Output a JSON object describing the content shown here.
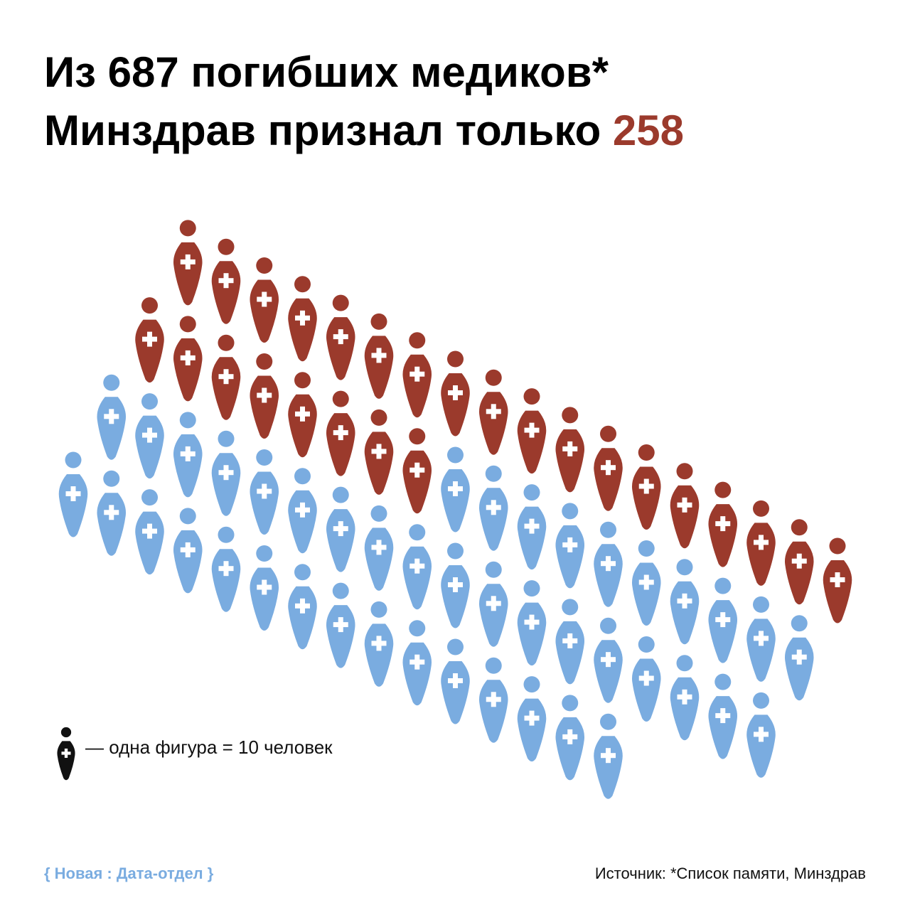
{
  "header": {
    "title_line1": "Из 687 погибших медиков*",
    "title_line2": "Минздрав признал только",
    "title_highlight": "258"
  },
  "chart_data": {
    "type": "pictogram",
    "total": 687,
    "recognized": 258,
    "people_per_figure": 10,
    "colors": {
      "recognized": "#9b3a2c",
      "other": "#7aace0"
    }
  },
  "legend": {
    "text": "— одна фигура = 10 человек"
  },
  "footer": {
    "brand": "{ Новая : Дата-отдел }",
    "source": "Источник: *Список памяти, Минздрав"
  }
}
